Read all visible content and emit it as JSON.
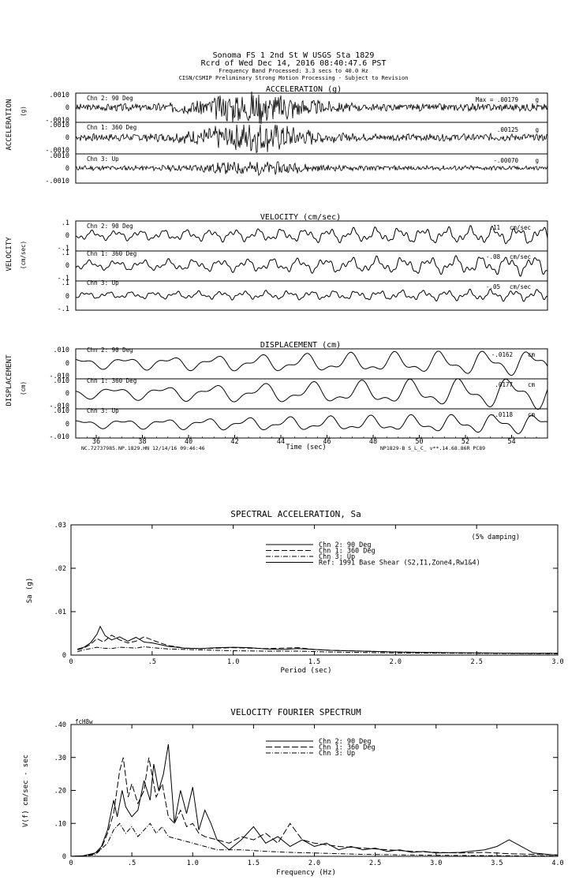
{
  "header": {
    "line1": "Sonoma FS 1 2nd St W    USGS Sta 1829",
    "line2": "Rcrd of Wed Dec 14, 2016 08:40:47.6 PST",
    "line3": "Frequency Band Processed: 3.3 secs to 40.0 Hz",
    "line4": "CISN/CSMIP Preliminary Strong Motion Processing - Subject to Revision"
  },
  "time_series": {
    "x_label": "Time (sec)",
    "x_ticks": [
      "36",
      "38",
      "40",
      "42",
      "44",
      "46",
      "48",
      "50",
      "52",
      "54"
    ],
    "footer_left": "NC.72737985.NP.1829.HN 12/14/16 09:46:46",
    "footer_right": "NP1829-B  S_L_C_  v**.14.68.86R PC89",
    "panels": [
      {
        "title": "ACCELERATION (g)",
        "ylabel": "ACCELERATION",
        "ylabel_unit": "(g)",
        "ticks": [
          ".0010",
          "0",
          "-.0010"
        ],
        "channels": [
          {
            "name": "Chn 2: 90 Deg",
            "peak": "Max =   .00179",
            "unit": "g"
          },
          {
            "name": "Chn 1: 360 Deg",
            "peak": ".00125",
            "unit": "g"
          },
          {
            "name": "Chn 3: Up",
            "peak": "-.00070",
            "unit": "g"
          }
        ]
      },
      {
        "title": "VELOCITY (cm/sec)",
        "ylabel": "VELOCITY",
        "ylabel_unit": "(cm/sec)",
        "ticks": [
          ".1",
          "0",
          "-.1"
        ],
        "channels": [
          {
            "name": "Chn 2: 90 Deg",
            "peak": ".11",
            "unit": "cm/sec"
          },
          {
            "name": "Chn 1: 360 Deg",
            "peak": "-.08",
            "unit": "cm/sec"
          },
          {
            "name": "Chn 3: Up",
            "peak": "-.05",
            "unit": "cm/sec"
          }
        ]
      },
      {
        "title": "DISPLACEMENT (cm)",
        "ylabel": "DISPLACEMENT",
        "ylabel_unit": "(cm)",
        "ticks": [
          ".010",
          "0",
          "-.010"
        ],
        "channels": [
          {
            "name": "Chn 2: 90 Deg",
            "peak": "-.0162",
            "unit": "cm"
          },
          {
            "name": "Chn 1: 360 Deg",
            "peak": ".0177",
            "unit": "cm"
          },
          {
            "name": "Chn 3: Up",
            "peak": "-.0118",
            "unit": "cm"
          }
        ]
      }
    ]
  },
  "chart_data": [
    {
      "type": "line",
      "title": "SPECTRAL ACCELERATION, Sa",
      "annotation": "(5% damping)",
      "xlabel": "Period (sec)",
      "ylabel": "Sa (g)",
      "xlim": [
        0,
        3.0
      ],
      "ylim": [
        0,
        0.03
      ],
      "x_ticks": [
        {
          "v": 0,
          "label": "0"
        },
        {
          "v": 0.5,
          "label": ".5"
        },
        {
          "v": 1.0,
          "label": "1.0"
        },
        {
          "v": 1.5,
          "label": "1.5"
        },
        {
          "v": 2.0,
          "label": "2.0"
        },
        {
          "v": 2.5,
          "label": "2.5"
        },
        {
          "v": 3.0,
          "label": "3.0"
        }
      ],
      "y_ticks": [
        {
          "v": 0,
          "label": "0"
        },
        {
          "v": 0.01,
          "label": ".01"
        },
        {
          "v": 0.02,
          "label": ".02"
        },
        {
          "v": 0.03,
          "label": ".03"
        }
      ],
      "series": [
        {
          "name": "Chn 2: 90 Deg",
          "dash": "",
          "x": [
            0.04,
            0.08,
            0.12,
            0.16,
            0.18,
            0.21,
            0.25,
            0.3,
            0.35,
            0.4,
            0.45,
            0.5,
            0.55,
            0.6,
            0.7,
            0.8,
            0.9,
            1.0,
            1.1,
            1.2,
            1.3,
            1.4,
            1.5,
            1.6,
            1.8,
            2.0,
            2.2,
            2.5,
            2.8,
            3.0
          ],
          "y": [
            0.0014,
            0.0018,
            0.0028,
            0.0048,
            0.0066,
            0.0045,
            0.0035,
            0.0042,
            0.0032,
            0.0041,
            0.003,
            0.0028,
            0.0024,
            0.002,
            0.0016,
            0.0015,
            0.0017,
            0.0018,
            0.0017,
            0.0014,
            0.0013,
            0.0015,
            0.0013,
            0.0011,
            0.0009,
            0.0007,
            0.0006,
            0.0005,
            0.0004,
            0.0004
          ]
        },
        {
          "name": "Chn 1: 360 Deg",
          "dash": "7,3",
          "x": [
            0.04,
            0.08,
            0.12,
            0.16,
            0.2,
            0.25,
            0.3,
            0.35,
            0.4,
            0.45,
            0.5,
            0.55,
            0.6,
            0.7,
            0.8,
            0.9,
            1.0,
            1.1,
            1.2,
            1.3,
            1.4,
            1.5,
            1.6,
            1.8,
            2.0,
            2.2,
            2.5,
            2.8,
            3.0
          ],
          "y": [
            0.0012,
            0.0016,
            0.0025,
            0.0038,
            0.003,
            0.0046,
            0.0035,
            0.0028,
            0.0032,
            0.0042,
            0.0035,
            0.0028,
            0.0022,
            0.0016,
            0.0015,
            0.0016,
            0.0017,
            0.0016,
            0.0015,
            0.0016,
            0.0017,
            0.0013,
            0.0011,
            0.0009,
            0.0007,
            0.0006,
            0.0005,
            0.0004,
            0.0004
          ]
        },
        {
          "name": "Chn 3: Up",
          "dash": "6,2,1,2",
          "x": [
            0.04,
            0.08,
            0.12,
            0.16,
            0.2,
            0.25,
            0.3,
            0.35,
            0.4,
            0.45,
            0.5,
            0.6,
            0.7,
            0.8,
            0.9,
            1.0,
            1.2,
            1.4,
            1.6,
            1.8,
            2.0,
            2.5,
            3.0
          ],
          "y": [
            0.0008,
            0.0012,
            0.0015,
            0.0018,
            0.0016,
            0.0015,
            0.0018,
            0.0017,
            0.0016,
            0.0019,
            0.0017,
            0.0014,
            0.0013,
            0.0012,
            0.0011,
            0.001,
            0.0009,
            0.0009,
            0.0007,
            0.0006,
            0.0005,
            0.0004,
            0.0003
          ]
        },
        {
          "name": "Ref: 1991 Base Shear (S2,I1,Zone4,Rw1&4)",
          "dash": "",
          "x": [],
          "y": []
        }
      ]
    },
    {
      "type": "line",
      "title": "VELOCITY FOURIER SPECTRUM",
      "corner_label": "fcH8w",
      "xlabel": "Frequency (Hz)",
      "ylabel": "V(f)   cm/sec - sec",
      "xlim": [
        0,
        4.0
      ],
      "ylim": [
        0,
        0.4
      ],
      "x_ticks": [
        {
          "v": 0,
          "label": "0"
        },
        {
          "v": 0.5,
          "label": ".5"
        },
        {
          "v": 1.0,
          "label": "1.0"
        },
        {
          "v": 1.5,
          "label": "1.5"
        },
        {
          "v": 2.0,
          "label": "2.0"
        },
        {
          "v": 2.5,
          "label": "2.5"
        },
        {
          "v": 3.0,
          "label": "3.0"
        },
        {
          "v": 3.5,
          "label": "3.5"
        },
        {
          "v": 4.0,
          "label": "4.0"
        }
      ],
      "y_ticks": [
        {
          "v": 0,
          "label": "0"
        },
        {
          "v": 0.1,
          "label": ".10"
        },
        {
          "v": 0.2,
          "label": ".20"
        },
        {
          "v": 0.3,
          "label": ".30"
        },
        {
          "v": 0.4,
          "label": ".40"
        }
      ],
      "series": [
        {
          "name": "Chn 2: 90 Deg",
          "dash": "",
          "x": [
            0.0,
            0.1,
            0.2,
            0.25,
            0.3,
            0.35,
            0.38,
            0.42,
            0.45,
            0.5,
            0.55,
            0.6,
            0.65,
            0.68,
            0.72,
            0.76,
            0.8,
            0.85,
            0.9,
            0.95,
            1.0,
            1.05,
            1.1,
            1.15,
            1.2,
            1.3,
            1.4,
            1.5,
            1.6,
            1.7,
            1.8,
            1.9,
            2.0,
            2.1,
            2.2,
            2.3,
            2.4,
            2.5,
            2.6,
            2.7,
            2.8,
            2.9,
            3.0,
            3.2,
            3.4,
            3.5,
            3.6,
            3.8,
            4.0
          ],
          "y": [
            0.0,
            0.002,
            0.01,
            0.03,
            0.08,
            0.17,
            0.12,
            0.2,
            0.15,
            0.12,
            0.14,
            0.23,
            0.17,
            0.28,
            0.2,
            0.25,
            0.34,
            0.1,
            0.2,
            0.13,
            0.21,
            0.08,
            0.14,
            0.1,
            0.05,
            0.02,
            0.05,
            0.09,
            0.04,
            0.06,
            0.03,
            0.05,
            0.03,
            0.04,
            0.02,
            0.03,
            0.02,
            0.025,
            0.015,
            0.02,
            0.012,
            0.015,
            0.01,
            0.012,
            0.02,
            0.03,
            0.05,
            0.01,
            0.003
          ]
        },
        {
          "name": "Chn 1: 360 Deg",
          "dash": "8,3",
          "x": [
            0.0,
            0.1,
            0.2,
            0.25,
            0.3,
            0.35,
            0.4,
            0.43,
            0.47,
            0.5,
            0.55,
            0.6,
            0.64,
            0.7,
            0.75,
            0.8,
            0.85,
            0.9,
            0.95,
            1.0,
            1.05,
            1.1,
            1.2,
            1.3,
            1.4,
            1.5,
            1.6,
            1.7,
            1.8,
            1.9,
            2.0,
            2.2,
            2.4,
            2.6,
            2.8,
            3.0,
            3.2,
            3.4,
            3.6,
            3.8,
            4.0
          ],
          "y": [
            0.0,
            0.001,
            0.008,
            0.025,
            0.07,
            0.13,
            0.26,
            0.3,
            0.18,
            0.22,
            0.16,
            0.2,
            0.3,
            0.18,
            0.22,
            0.12,
            0.1,
            0.14,
            0.09,
            0.1,
            0.07,
            0.06,
            0.05,
            0.04,
            0.06,
            0.05,
            0.07,
            0.04,
            0.1,
            0.05,
            0.04,
            0.03,
            0.025,
            0.02,
            0.015,
            0.012,
            0.01,
            0.012,
            0.008,
            0.006,
            0.004
          ]
        },
        {
          "name": "Chn 3: Up",
          "dash": "6,2,1,2",
          "x": [
            0.0,
            0.1,
            0.2,
            0.3,
            0.35,
            0.4,
            0.45,
            0.5,
            0.55,
            0.6,
            0.65,
            0.7,
            0.75,
            0.8,
            0.9,
            1.0,
            1.1,
            1.2,
            1.4,
            1.6,
            1.8,
            2.0,
            2.2,
            2.4,
            2.6,
            2.8,
            3.0,
            3.5,
            4.0
          ],
          "y": [
            0.0,
            0.001,
            0.005,
            0.04,
            0.08,
            0.1,
            0.07,
            0.09,
            0.06,
            0.08,
            0.1,
            0.07,
            0.09,
            0.06,
            0.05,
            0.04,
            0.03,
            0.02,
            0.02,
            0.015,
            0.012,
            0.01,
            0.008,
            0.006,
            0.005,
            0.004,
            0.003,
            0.002,
            0.001
          ]
        }
      ]
    }
  ]
}
